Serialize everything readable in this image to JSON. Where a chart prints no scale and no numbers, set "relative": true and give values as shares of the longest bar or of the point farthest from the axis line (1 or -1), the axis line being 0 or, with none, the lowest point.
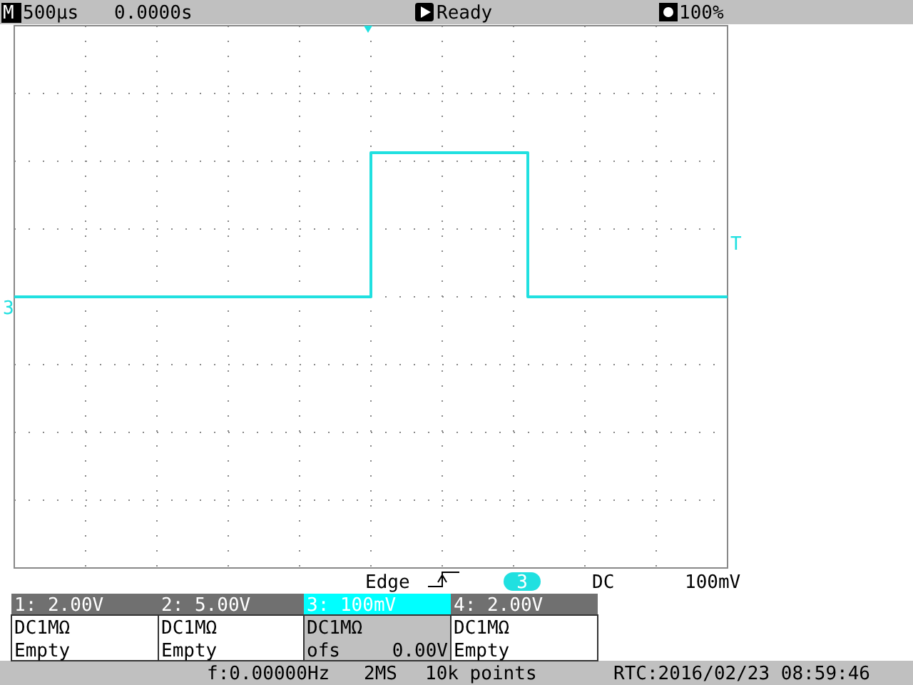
{
  "chart_data": {
    "type": "step",
    "relative": true,
    "grid": true,
    "categories": [
      null,
      null,
      null,
      null,
      null,
      null,
      null,
      null,
      null,
      null,
      null,
      null,
      null,
      null,
      null,
      null,
      null,
      null,
      null,
      null,
      null,
      null,
      null,
      null,
      null,
      null,
      null,
      null,
      null,
      null,
      null,
      null,
      null,
      null,
      null,
      null,
      null,
      null,
      null,
      null,
      null,
      null,
      null,
      null,
      null,
      null,
      null,
      null,
      null,
      null,
      null
    ],
    "series": [
      {
        "color": "#20e0e0",
        "values": [
          0,
          0,
          0,
          0,
          0,
          0,
          0,
          0,
          0,
          0,
          0,
          0,
          0,
          0,
          0,
          0,
          0,
          0,
          0,
          0,
          0,
          0,
          0,
          0,
          0,
          1,
          1,
          1,
          1,
          1,
          1,
          1,
          1,
          1,
          1,
          1,
          0,
          0,
          0,
          0,
          0,
          0,
          0,
          0,
          0,
          0,
          0,
          0,
          0,
          0,
          0
        ]
      }
    ],
    "annotations": [
      "M",
      "500µs",
      "0.0000s",
      "Ready",
      "100%",
      "3",
      "T",
      "Edge",
      "3",
      "DC",
      "100mV",
      "1: 2.00V",
      "2: 5.00V",
      "3: 100mV",
      "4: 2.00V",
      "DC1MΩ",
      "DC1MΩ",
      "DC1MΩ",
      "DC1MΩ",
      "Empty",
      "Empty",
      "ofs",
      "0.00V",
      "Empty",
      "f:0.00000Hz",
      "2MS",
      "10k points",
      "RTC:2016/02/23 08:59:46"
    ]
  }
}
